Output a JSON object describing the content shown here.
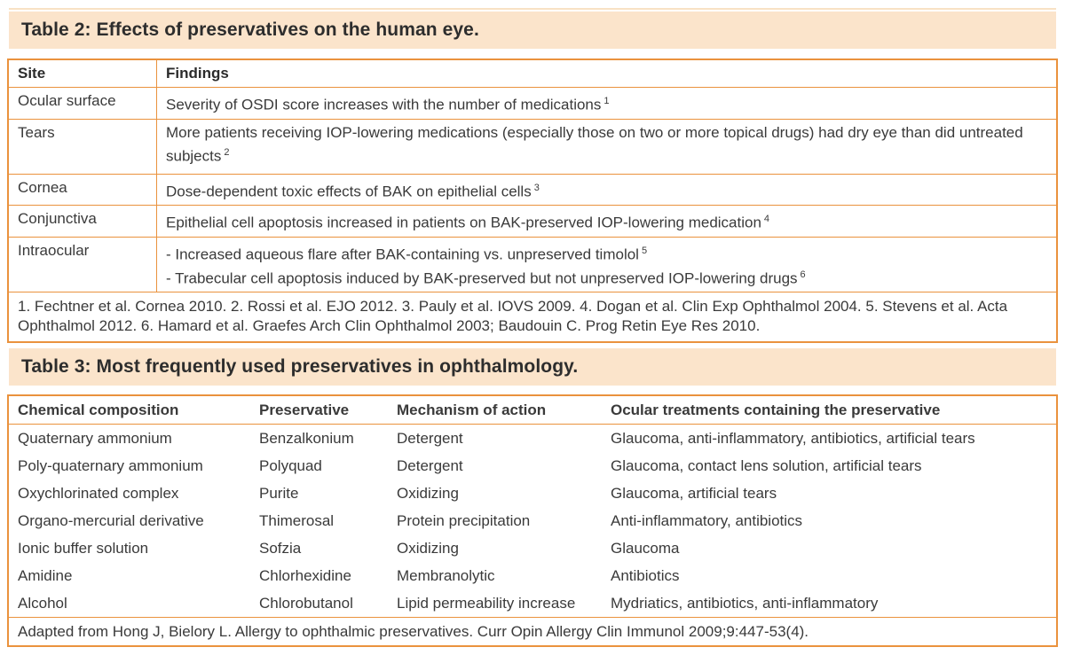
{
  "colors": {
    "table_border": "#ea923d",
    "title_band_bg": "#fbe4cb",
    "top_rule": "#f8e2c4",
    "body_text": "#3a3a3a",
    "heading_text": "#2b2b2b"
  },
  "table2": {
    "title": "Table 2: Effects of preservatives on the human eye.",
    "columns": [
      "Site",
      "Findings"
    ],
    "rows": [
      {
        "site": "Ocular surface",
        "lines": [
          {
            "text": "Severity of OSDI score increases with the number of medications",
            "ref": "1"
          }
        ]
      },
      {
        "site": "Tears",
        "lines": [
          {
            "text": "More patients receiving IOP-lowering medications (especially those on two or more topical drugs) had dry eye than did untreated subjects",
            "ref": "2"
          }
        ]
      },
      {
        "site": "Cornea",
        "lines": [
          {
            "text": "Dose-dependent toxic effects of BAK on epithelial cells",
            "ref": "3"
          }
        ]
      },
      {
        "site": "Conjunctiva",
        "lines": [
          {
            "text": "Epithelial cell apoptosis increased in patients on BAK-preserved IOP-lowering medication",
            "ref": "4"
          }
        ]
      },
      {
        "site": "Intraocular",
        "lines": [
          {
            "text": "- Increased aqueous flare after BAK-containing vs. unpreserved timolol",
            "ref": "5"
          },
          {
            "text": "- Trabecular cell apoptosis induced by BAK-preserved but not unpreserved IOP-lowering drugs",
            "ref": "6"
          }
        ]
      }
    ],
    "footnote": "1. Fechtner et al. Cornea 2010. 2. Rossi et al. EJO 2012. 3. Pauly et al. IOVS 2009. 4. Dogan et al. Clin Exp Ophthalmol 2004. 5. Stevens et al. Acta Ophthalmol 2012. 6. Hamard et al. Graefes Arch Clin Ophthalmol 2003; Baudouin C. Prog Retin Eye Res 2010."
  },
  "table3": {
    "title": "Table 3: Most frequently used preservatives in ophthalmology.",
    "columns": [
      "Chemical composition",
      "Preservative",
      "Mechanism of action",
      "Ocular treatments containing the preservative"
    ],
    "rows": [
      [
        "Quaternary ammonium",
        "Benzalkonium",
        "Detergent",
        "Glaucoma, anti-inflammatory, antibiotics, artificial tears"
      ],
      [
        "Poly-quaternary ammonium",
        "Polyquad",
        "Detergent",
        "Glaucoma, contact lens solution, artificial tears"
      ],
      [
        "Oxychlorinated complex",
        "Purite",
        "Oxidizing",
        "Glaucoma, artificial tears"
      ],
      [
        "Organo-mercurial derivative",
        "Thimerosal",
        "Protein precipitation",
        "Anti-inflammatory, antibiotics"
      ],
      [
        "Ionic buffer solution",
        "Sofzia",
        "Oxidizing",
        "Glaucoma"
      ],
      [
        "Amidine",
        "Chlorhexidine",
        "Membranolytic",
        "Antibiotics"
      ],
      [
        "Alcohol",
        "Chlorobutanol",
        "Lipid permeability increase",
        "Mydriatics, antibiotics, anti-inflammatory"
      ]
    ],
    "footnote": "Adapted from Hong J, Bielory L. Allergy to ophthalmic preservatives. Curr Opin Allergy Clin Immunol 2009;9:447-53(4)."
  }
}
